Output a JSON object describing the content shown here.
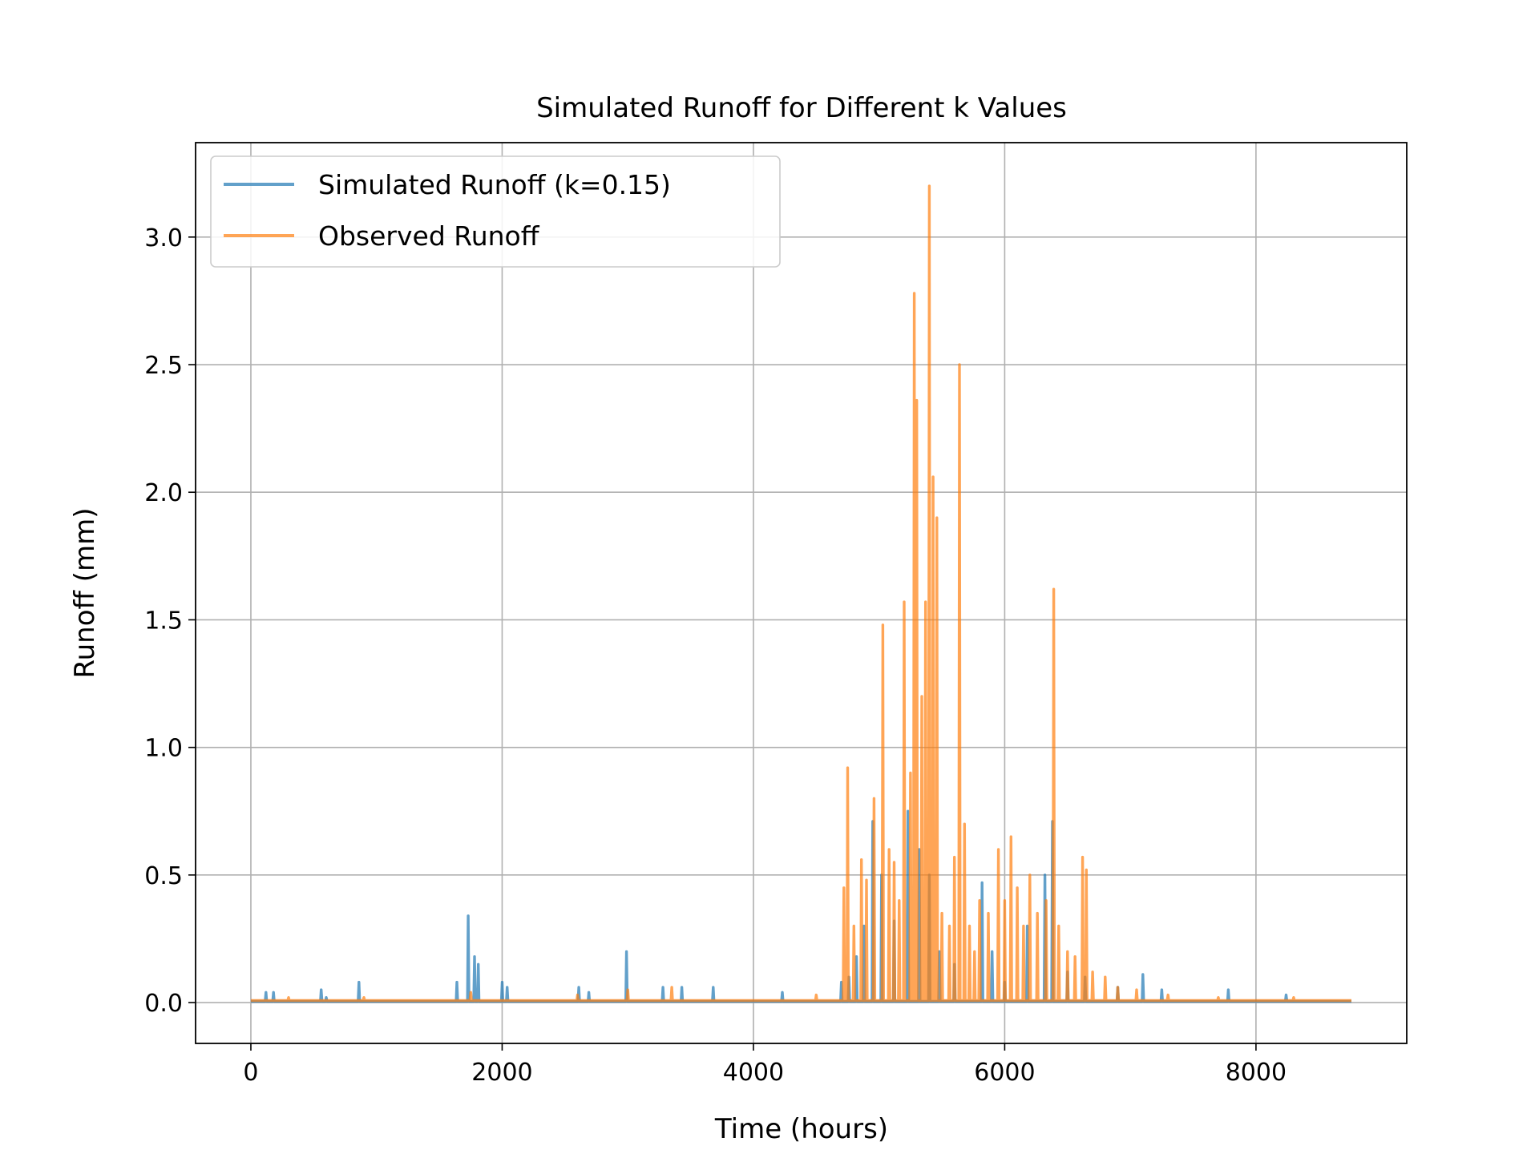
{
  "chart_data": {
    "type": "line",
    "title": "Simulated Runoff for Different k Values",
    "xlabel": "Time (hours)",
    "ylabel": "Runoff (mm)",
    "xlim": [
      -440,
      9200
    ],
    "ylim": [
      -0.16,
      3.37
    ],
    "xticks": [
      0,
      2000,
      4000,
      6000,
      8000
    ],
    "xtick_labels": [
      "0",
      "2000",
      "4000",
      "6000",
      "8000"
    ],
    "yticks": [
      0.0,
      0.5,
      1.0,
      1.5,
      2.0,
      2.5,
      3.0
    ],
    "ytick_labels": [
      "0.0",
      "0.5",
      "1.0",
      "1.5",
      "2.0",
      "2.5",
      "3.0"
    ],
    "grid": true,
    "legend_position": "upper-left",
    "series": [
      {
        "name": "Simulated Runoff (k=0.15)",
        "color": "#1f77b4",
        "opacity": 0.7,
        "baseline": 0.005,
        "x_end": 8760,
        "spikes": [
          [
            120,
            0.04
          ],
          [
            180,
            0.04
          ],
          [
            560,
            0.05
          ],
          [
            600,
            0.02
          ],
          [
            860,
            0.08
          ],
          [
            1640,
            0.08
          ],
          [
            1730,
            0.34
          ],
          [
            1780,
            0.18
          ],
          [
            1810,
            0.15
          ],
          [
            2000,
            0.08
          ],
          [
            2040,
            0.06
          ],
          [
            2610,
            0.06
          ],
          [
            2690,
            0.04
          ],
          [
            2990,
            0.2
          ],
          [
            3280,
            0.06
          ],
          [
            3430,
            0.06
          ],
          [
            3680,
            0.06
          ],
          [
            4230,
            0.04
          ],
          [
            4700,
            0.08
          ],
          [
            4760,
            0.1
          ],
          [
            4820,
            0.18
          ],
          [
            4880,
            0.3
          ],
          [
            4950,
            0.71
          ],
          [
            5020,
            0.5
          ],
          [
            5120,
            0.32
          ],
          [
            5230,
            0.75
          ],
          [
            5320,
            0.6
          ],
          [
            5400,
            0.5
          ],
          [
            5480,
            0.2
          ],
          [
            5600,
            0.15
          ],
          [
            5820,
            0.47
          ],
          [
            5900,
            0.2
          ],
          [
            6000,
            0.08
          ],
          [
            6180,
            0.3
          ],
          [
            6320,
            0.5
          ],
          [
            6380,
            0.71
          ],
          [
            6500,
            0.12
          ],
          [
            6640,
            0.1
          ],
          [
            6900,
            0.06
          ],
          [
            7100,
            0.11
          ],
          [
            7250,
            0.05
          ],
          [
            7780,
            0.05
          ],
          [
            8240,
            0.03
          ]
        ]
      },
      {
        "name": "Observed Runoff",
        "color": "#ff7f0e",
        "opacity": 0.7,
        "baseline": 0.008,
        "x_end": 8760,
        "spikes": [
          [
            300,
            0.02
          ],
          [
            900,
            0.02
          ],
          [
            1750,
            0.04
          ],
          [
            2600,
            0.03
          ],
          [
            3000,
            0.05
          ],
          [
            3350,
            0.06
          ],
          [
            4500,
            0.03
          ],
          [
            4720,
            0.45
          ],
          [
            4750,
            0.92
          ],
          [
            4800,
            0.3
          ],
          [
            4860,
            0.56
          ],
          [
            4900,
            0.48
          ],
          [
            4960,
            0.8
          ],
          [
            5030,
            1.48
          ],
          [
            5080,
            0.6
          ],
          [
            5120,
            0.55
          ],
          [
            5160,
            0.4
          ],
          [
            5200,
            1.57
          ],
          [
            5250,
            0.9
          ],
          [
            5280,
            2.78
          ],
          [
            5300,
            2.36
          ],
          [
            5340,
            1.2
          ],
          [
            5370,
            1.57
          ],
          [
            5400,
            3.2
          ],
          [
            5430,
            2.06
          ],
          [
            5460,
            1.9
          ],
          [
            5500,
            0.35
          ],
          [
            5560,
            0.3
          ],
          [
            5600,
            0.57
          ],
          [
            5640,
            2.5
          ],
          [
            5680,
            0.7
          ],
          [
            5720,
            0.3
          ],
          [
            5760,
            0.2
          ],
          [
            5800,
            0.4
          ],
          [
            5870,
            0.35
          ],
          [
            5950,
            0.6
          ],
          [
            6000,
            0.4
          ],
          [
            6050,
            0.65
          ],
          [
            6100,
            0.45
          ],
          [
            6150,
            0.3
          ],
          [
            6200,
            0.5
          ],
          [
            6260,
            0.35
          ],
          [
            6330,
            0.4
          ],
          [
            6390,
            1.62
          ],
          [
            6430,
            0.3
          ],
          [
            6500,
            0.2
          ],
          [
            6560,
            0.18
          ],
          [
            6620,
            0.57
          ],
          [
            6650,
            0.52
          ],
          [
            6700,
            0.12
          ],
          [
            6800,
            0.1
          ],
          [
            6900,
            0.06
          ],
          [
            7050,
            0.05
          ],
          [
            7300,
            0.03
          ],
          [
            7700,
            0.02
          ],
          [
            8300,
            0.02
          ]
        ]
      }
    ]
  }
}
